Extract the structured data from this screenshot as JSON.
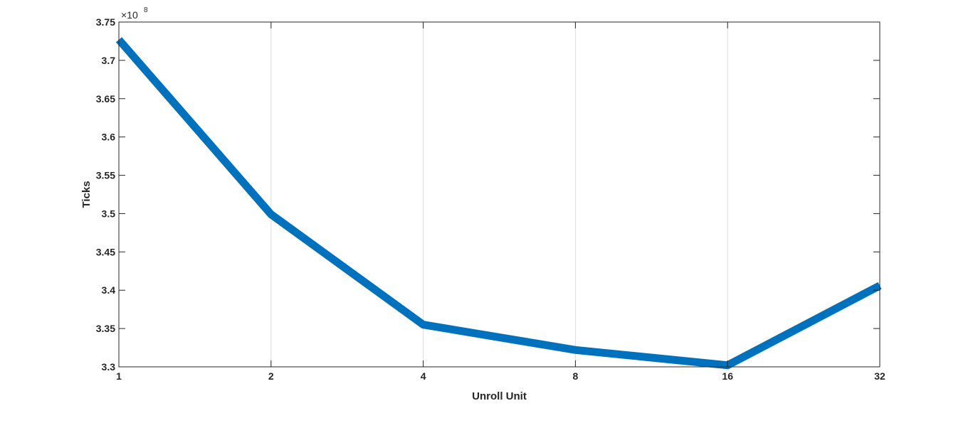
{
  "chart_data": {
    "type": "line",
    "x": [
      1,
      2,
      4,
      8,
      16,
      32
    ],
    "x_tick_labels": [
      "1",
      "2",
      "4",
      "8",
      "16",
      "32"
    ],
    "xscale": "log2",
    "xlim": [
      1,
      32
    ],
    "xlabel": "Unroll Unit",
    "ylabel": "Ticks",
    "ylim": [
      3.3,
      3.75
    ],
    "y_ticks": [
      3.3,
      3.35,
      3.4,
      3.45,
      3.5,
      3.55,
      3.6,
      3.65,
      3.7,
      3.75
    ],
    "y_tick_labels": [
      "3.3",
      "3.35",
      "3.4",
      "3.45",
      "3.5",
      "3.55",
      "3.6",
      "3.65",
      "3.7",
      "3.75"
    ],
    "y_exponent_base": "×10",
    "y_exponent_power": "8",
    "series": [
      {
        "values": [
          3.727,
          3.499,
          3.355,
          3.322,
          3.302,
          3.406
        ],
        "color": "#0072BD"
      }
    ],
    "grid": "vertical",
    "legend": "none"
  }
}
